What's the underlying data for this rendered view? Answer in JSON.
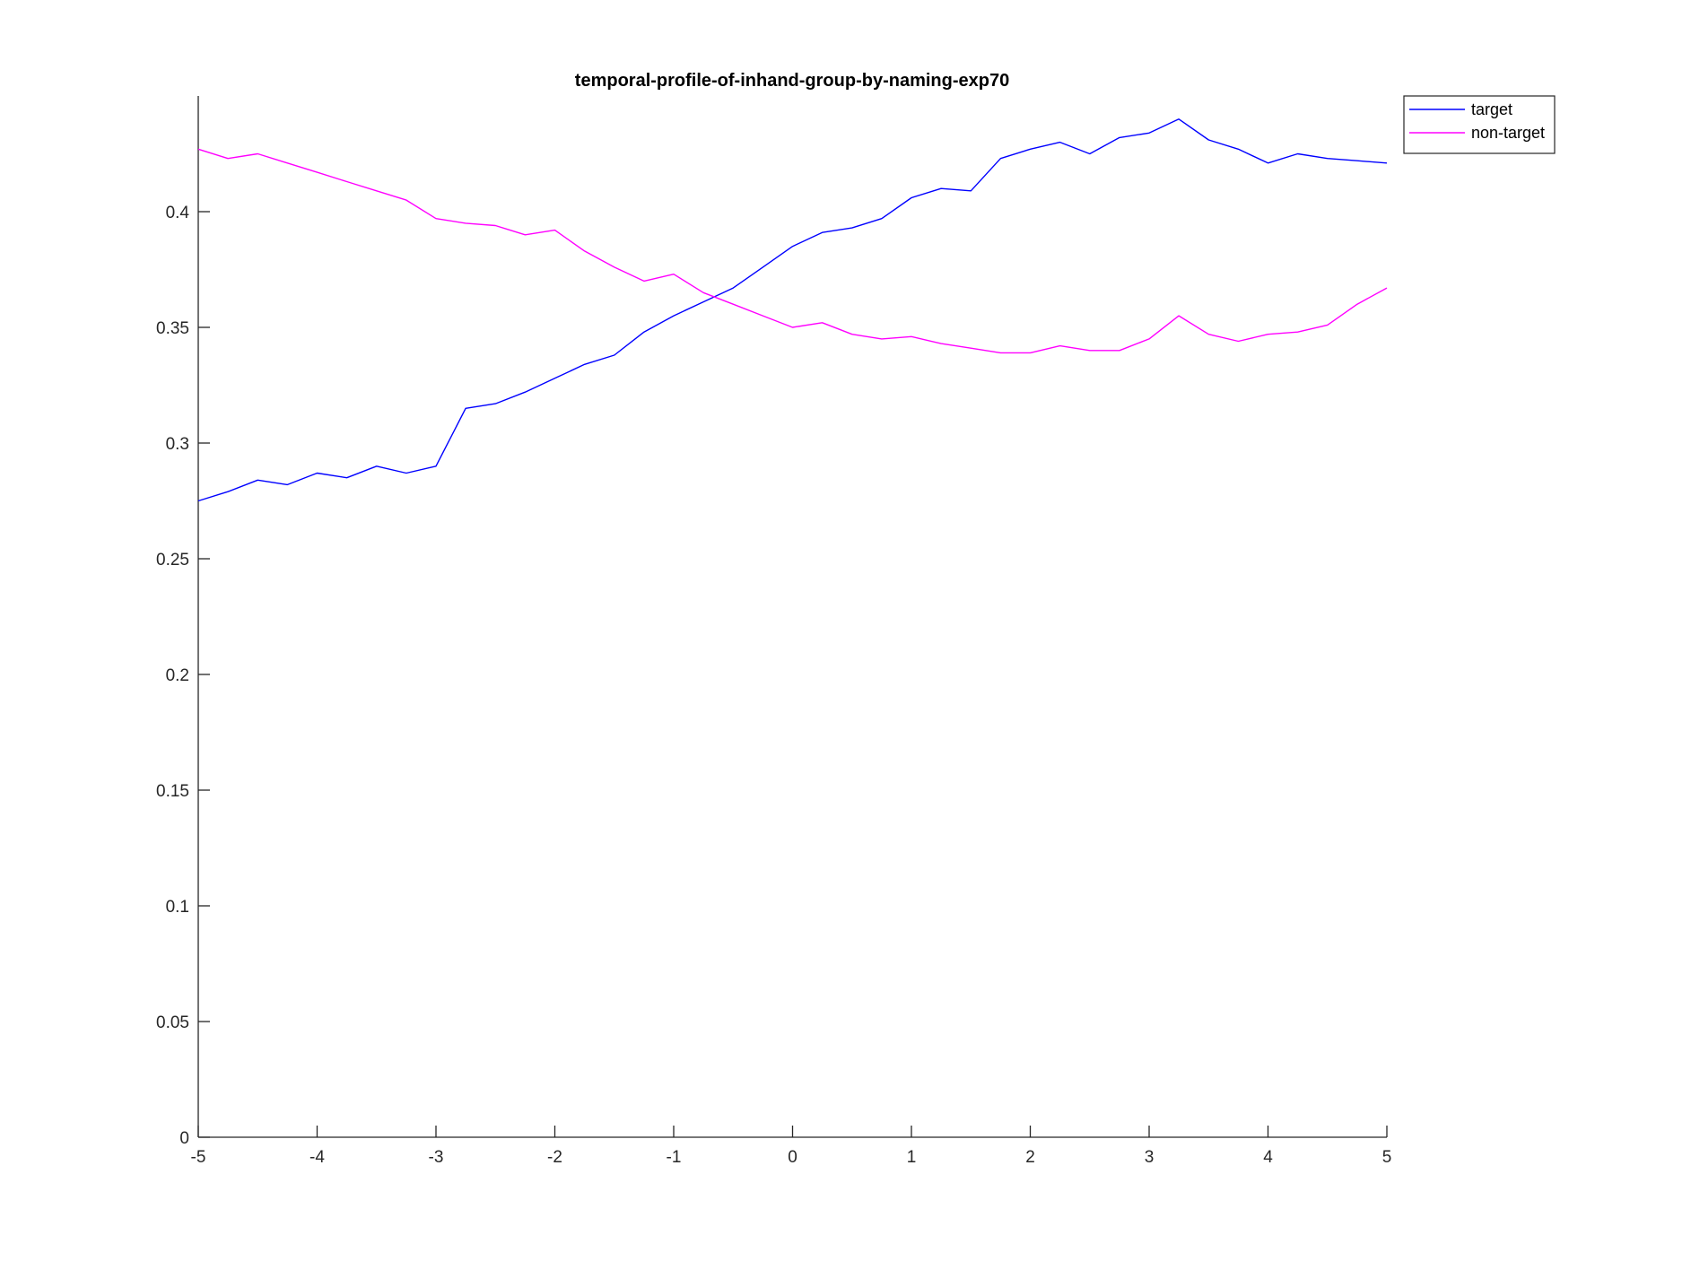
{
  "chart_data": {
    "type": "line",
    "title": "temporal-profile-of-inhand-group-by-naming-exp70",
    "xlabel": "",
    "ylabel": "",
    "xlim": [
      -5,
      5
    ],
    "ylim": [
      0,
      0.45
    ],
    "x_ticks": [
      -5,
      -4,
      -3,
      -2,
      -1,
      0,
      1,
      2,
      3,
      4,
      5
    ],
    "x_tick_labels": [
      "-5",
      "-4",
      "-3",
      "-2",
      "-1",
      "0",
      "1",
      "2",
      "3",
      "4",
      "5"
    ],
    "y_ticks": [
      0,
      0.05,
      0.1,
      0.15,
      0.2,
      0.25,
      0.3,
      0.35,
      0.4
    ],
    "y_tick_labels": [
      "0",
      "0.05",
      "0.1",
      "0.15",
      "0.2",
      "0.25",
      "0.3",
      "0.35",
      "0.4"
    ],
    "grid": false,
    "legend_position": "top-right",
    "x": [
      -5,
      -4.75,
      -4.5,
      -4.25,
      -4,
      -3.75,
      -3.5,
      -3.25,
      -3,
      -2.75,
      -2.5,
      -2.25,
      -2,
      -1.75,
      -1.5,
      -1.25,
      -1,
      -0.75,
      -0.5,
      -0.25,
      0,
      0.25,
      0.5,
      0.75,
      1,
      1.25,
      1.5,
      1.75,
      2,
      2.25,
      2.5,
      2.75,
      3,
      3.25,
      3.5,
      3.75,
      4,
      4.25,
      4.5,
      4.75,
      5
    ],
    "series": [
      {
        "name": "target",
        "color": "#0000ff",
        "values": [
          0.275,
          0.279,
          0.284,
          0.282,
          0.287,
          0.285,
          0.29,
          0.287,
          0.29,
          0.315,
          0.317,
          0.322,
          0.328,
          0.334,
          0.338,
          0.348,
          0.355,
          0.361,
          0.367,
          0.376,
          0.385,
          0.391,
          0.393,
          0.397,
          0.406,
          0.41,
          0.409,
          0.423,
          0.427,
          0.43,
          0.425,
          0.432,
          0.434,
          0.44,
          0.431,
          0.427,
          0.421,
          0.425,
          0.423,
          0.422,
          0.421
        ]
      },
      {
        "name": "non-target",
        "color": "#ff00ff",
        "values": [
          0.427,
          0.423,
          0.425,
          0.421,
          0.417,
          0.413,
          0.409,
          0.405,
          0.397,
          0.395,
          0.394,
          0.39,
          0.392,
          0.383,
          0.376,
          0.37,
          0.373,
          0.365,
          0.36,
          0.355,
          0.35,
          0.352,
          0.347,
          0.345,
          0.346,
          0.343,
          0.341,
          0.339,
          0.339,
          0.342,
          0.34,
          0.34,
          0.345,
          0.355,
          0.347,
          0.344,
          0.347,
          0.348,
          0.351,
          0.36,
          0.367
        ]
      }
    ]
  }
}
